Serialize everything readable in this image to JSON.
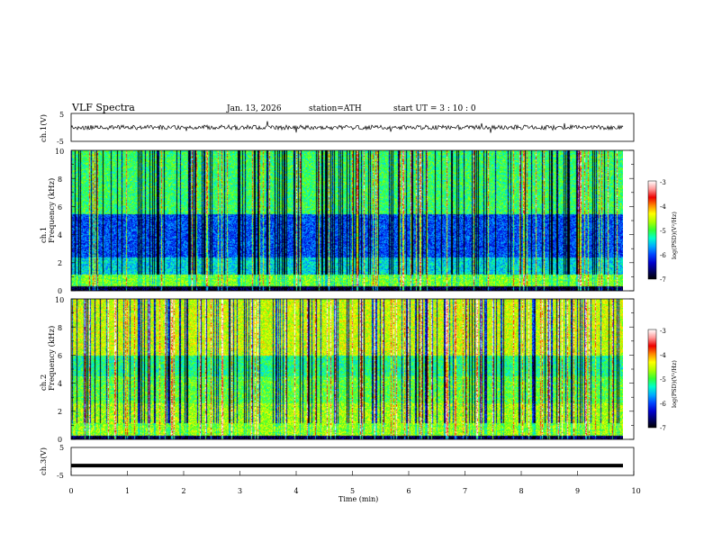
{
  "header": {
    "title": "VLF  Spectra",
    "date": "Jan. 13, 2026",
    "station": "station=ATH",
    "start": "start  UT  =   3  : 10 : 0"
  },
  "colors": {
    "spectrum_scale": [
      "#000000",
      "#000066",
      "#0000cc",
      "#0044ff",
      "#00aaff",
      "#00ffcc",
      "#33ff33",
      "#aaff00",
      "#ffff00",
      "#ff8800",
      "#ee0000",
      "#ff9999",
      "#ffffff"
    ],
    "trace": "#000000"
  },
  "chart_data": [
    {
      "type": "line",
      "name_label": "ch.1(V)",
      "ylim": [
        -5,
        5
      ],
      "ytick_labels": [
        "5",
        "-5"
      ],
      "xlim": [
        0,
        10
      ],
      "note": "waveform trace hovering around roughly 0 V with small fluctuations"
    },
    {
      "type": "heatmap",
      "ylabel": "Frequency  (kHz)",
      "channel_label": "ch.1",
      "ylim": [
        0,
        10
      ],
      "ytick_labels": [
        "0",
        "2",
        "4",
        "6",
        "8",
        "10"
      ],
      "xlim": [
        0,
        10
      ],
      "colorbar": {
        "label": "log(PSD)(V²/Hz)",
        "range": [
          -7,
          -3
        ],
        "tick_labels": [
          "-3",
          "-4",
          "-5",
          "-6",
          "-7"
        ]
      }
    },
    {
      "type": "heatmap",
      "ylabel": "Frequency  (kHz)",
      "channel_label": "ch.2",
      "ylim": [
        0,
        10
      ],
      "ytick_labels": [
        "0",
        "2",
        "4",
        "6",
        "8",
        "10"
      ],
      "xlim": [
        0,
        10
      ],
      "colorbar": {
        "label": "log(PSD)(V²/Hz)",
        "range": [
          -7,
          -3
        ],
        "tick_labels": [
          "-3",
          "-4",
          "-5",
          "-6",
          "-7"
        ]
      }
    },
    {
      "type": "line",
      "name_label": "ch.3(V)",
      "ylim": [
        -5,
        5
      ],
      "ytick_labels": [
        "5",
        "-5"
      ],
      "xlim": [
        0,
        10
      ],
      "xlabel": "Time  (min)",
      "xtick_labels": [
        "0",
        "1",
        "2",
        "3",
        "4",
        "5",
        "6",
        "7",
        "8",
        "9",
        "10"
      ],
      "note": "flat thick trace at roughly -1.5 V"
    }
  ]
}
